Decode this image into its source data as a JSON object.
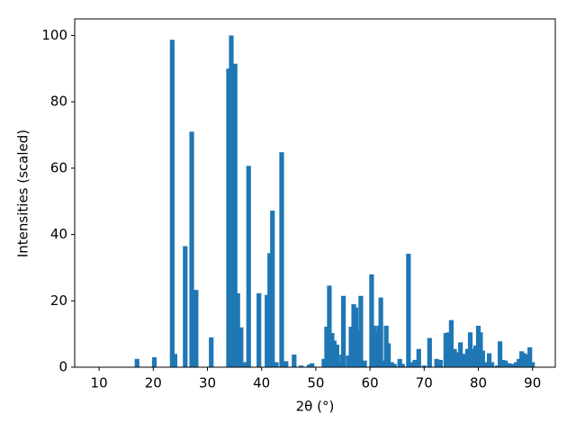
{
  "chart_data": {
    "type": "bar",
    "xlabel": "2θ (°)",
    "ylabel": "Intensities (scaled)",
    "color": "#1f77b4",
    "x": [
      17.0,
      20.2,
      23.5,
      24.0,
      25.9,
      27.1,
      27.9,
      30.7,
      33.9,
      34.4,
      35.1,
      35.6,
      36.2,
      36.8,
      37.6,
      39.5,
      41.0,
      41.5,
      42.0,
      42.7,
      43.7,
      44.5,
      46.0,
      47.3,
      48.8,
      49.3,
      51.5,
      52.0,
      52.5,
      53.0,
      53.4,
      53.9,
      54.5,
      54.8,
      55.1,
      56.0,
      56.5,
      57.0,
      57.4,
      57.8,
      58.3,
      59.0,
      60.3,
      60.7,
      61.2,
      61.6,
      62.0,
      62.6,
      63.0,
      63.4,
      64.0,
      64.5,
      65.5,
      66.0,
      67.1,
      67.8,
      68.3,
      69.0,
      70.0,
      71.0,
      72.3,
      73.0,
      74.0,
      74.5,
      75.0,
      75.6,
      76.2,
      76.7,
      77.5,
      78.0,
      78.5,
      79.0,
      79.5,
      80.0,
      80.4,
      80.8,
      81.5,
      82.0,
      82.5,
      83.5,
      84.0,
      84.5,
      85.0,
      85.7,
      86.5,
      87.0,
      87.5,
      88.0,
      88.5,
      89.0,
      89.5,
      90.0
    ],
    "values": [
      2.5,
      3,
      98.7,
      4,
      36.5,
      71,
      23.3,
      9,
      90,
      100,
      91.5,
      22.3,
      12,
      1.5,
      60.7,
      22.3,
      21.8,
      34.4,
      47.2,
      1.5,
      64.8,
      1.8,
      3.8,
      0.5,
      0.8,
      1.2,
      2.5,
      12.2,
      24.6,
      10.3,
      8,
      6.8,
      1.5,
      3.8,
      21.5,
      3.5,
      12.2,
      19,
      18,
      11,
      21.5,
      2,
      28,
      12.5,
      10.5,
      12.5,
      21,
      2,
      12.5,
      7.2,
      1.5,
      1,
      2.5,
      1,
      34.2,
      1.5,
      2.2,
      5.5,
      0.5,
      8.8,
      2.5,
      2.2,
      10.3,
      10.5,
      14.2,
      5.5,
      4.5,
      7.5,
      4,
      5.5,
      10.5,
      5.5,
      6.5,
      12.5,
      10.5,
      5,
      1.5,
      4.2,
      1.5,
      0.5,
      7.8,
      2.2,
      2,
      1.2,
      1,
      1.5,
      2.5,
      4.8,
      4.2,
      3.8,
      6,
      1.5
    ],
    "xlim": [
      5.5,
      94.2
    ],
    "ylim": [
      0,
      105
    ],
    "xticks": [
      10,
      20,
      30,
      40,
      50,
      60,
      70,
      80,
      90
    ],
    "yticks": [
      0,
      20,
      40,
      60,
      80,
      100
    ]
  }
}
